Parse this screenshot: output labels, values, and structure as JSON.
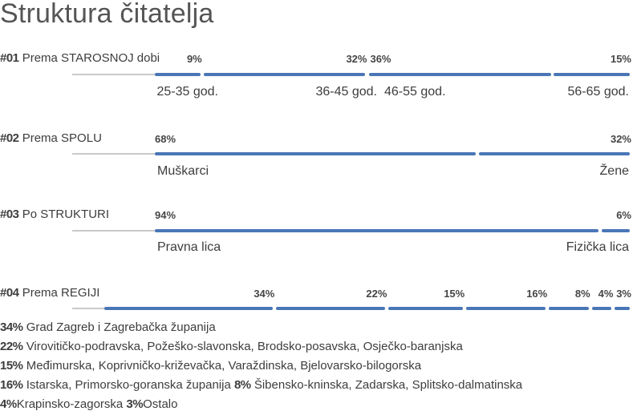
{
  "title": "Struktura čitatelja",
  "chart_data": [
    {
      "type": "bar",
      "id": "#01",
      "label": "Prema STAROSNOJ dobi",
      "categories": [
        "25-35 god.",
        "36-45 god.",
        "46-55 god.",
        "56-65 god."
      ],
      "values": [
        9,
        32,
        36,
        15
      ],
      "pct_labels": [
        "9%",
        "32%",
        "36%",
        "15%"
      ]
    },
    {
      "type": "bar",
      "id": "#02",
      "label": "Prema SPOLU",
      "categories": [
        "Muškarci",
        "Žene"
      ],
      "values": [
        68,
        32
      ],
      "pct_labels": [
        "68%",
        "32%"
      ]
    },
    {
      "type": "bar",
      "id": "#03",
      "label": "Po STRUKTURI",
      "categories": [
        "Pravna lica",
        "Fizička lica"
      ],
      "values": [
        94,
        6
      ],
      "pct_labels": [
        "94%",
        "6%"
      ]
    },
    {
      "type": "bar",
      "id": "#04",
      "label": "Prema REGIJI",
      "values": [
        34,
        22,
        15,
        16,
        8,
        4,
        3
      ],
      "pct_labels": [
        "34%",
        "22%",
        "15%",
        "16%",
        "8%",
        "4%",
        "3%"
      ]
    }
  ],
  "regions_legend": [
    [
      {
        "pct": "34%",
        "text": "Grad Zagreb i Zagrebačka županija"
      }
    ],
    [
      {
        "pct": "22%",
        "text": "Virovitičko-podravska, Požeško-slavonska, Brodsko-posavska, Osječko-baranjska"
      }
    ],
    [
      {
        "pct": "15%",
        "text": "Međimurska, Koprivničko-križevačka, Varaždinska, Bjelovarsko-bilogorska"
      }
    ],
    [
      {
        "pct": "16%",
        "text": "Istarska, Primorsko-goranska županija"
      },
      {
        "pct": "8%",
        "text": "Šibensko-kninska, Zadarska, Splitsko-dalmatinska"
      }
    ],
    [
      {
        "pct": "4%",
        "text": "Krapinsko-zagorska"
      },
      {
        "pct": "3%",
        "text": "Ostalo"
      }
    ]
  ],
  "colors": {
    "bar": "#4a76b6",
    "baseline": "#c9c9c9"
  }
}
